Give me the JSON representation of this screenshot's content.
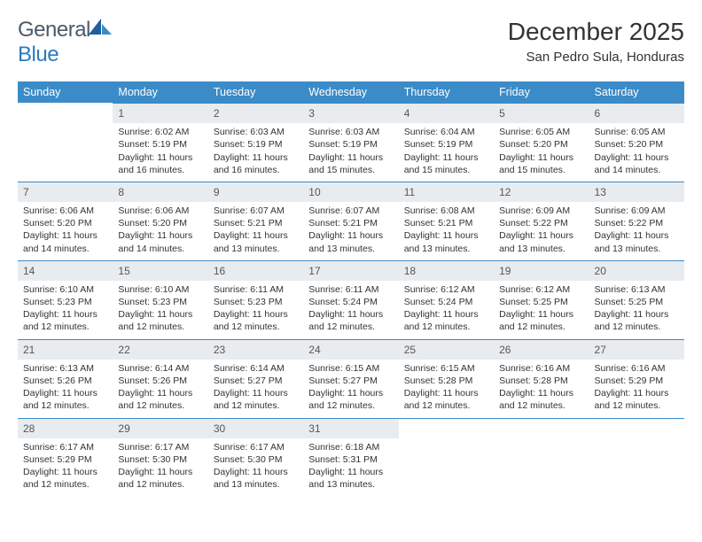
{
  "logo": {
    "text_general": "General",
    "text_blue": "Blue"
  },
  "title": "December 2025",
  "location": "San Pedro Sula, Honduras",
  "header_bg": "#3b8bc8",
  "daynum_bg": "#e9ecef",
  "rule_color": "#3b8bc8",
  "weekdays": [
    "Sunday",
    "Monday",
    "Tuesday",
    "Wednesday",
    "Thursday",
    "Friday",
    "Saturday"
  ],
  "first_weekday_offset": 1,
  "days": [
    {
      "n": 1,
      "sunrise": "6:02 AM",
      "sunset": "5:19 PM",
      "daylight": "11 hours and 16 minutes."
    },
    {
      "n": 2,
      "sunrise": "6:03 AM",
      "sunset": "5:19 PM",
      "daylight": "11 hours and 16 minutes."
    },
    {
      "n": 3,
      "sunrise": "6:03 AM",
      "sunset": "5:19 PM",
      "daylight": "11 hours and 15 minutes."
    },
    {
      "n": 4,
      "sunrise": "6:04 AM",
      "sunset": "5:19 PM",
      "daylight": "11 hours and 15 minutes."
    },
    {
      "n": 5,
      "sunrise": "6:05 AM",
      "sunset": "5:20 PM",
      "daylight": "11 hours and 15 minutes."
    },
    {
      "n": 6,
      "sunrise": "6:05 AM",
      "sunset": "5:20 PM",
      "daylight": "11 hours and 14 minutes."
    },
    {
      "n": 7,
      "sunrise": "6:06 AM",
      "sunset": "5:20 PM",
      "daylight": "11 hours and 14 minutes."
    },
    {
      "n": 8,
      "sunrise": "6:06 AM",
      "sunset": "5:20 PM",
      "daylight": "11 hours and 14 minutes."
    },
    {
      "n": 9,
      "sunrise": "6:07 AM",
      "sunset": "5:21 PM",
      "daylight": "11 hours and 13 minutes."
    },
    {
      "n": 10,
      "sunrise": "6:07 AM",
      "sunset": "5:21 PM",
      "daylight": "11 hours and 13 minutes."
    },
    {
      "n": 11,
      "sunrise": "6:08 AM",
      "sunset": "5:21 PM",
      "daylight": "11 hours and 13 minutes."
    },
    {
      "n": 12,
      "sunrise": "6:09 AM",
      "sunset": "5:22 PM",
      "daylight": "11 hours and 13 minutes."
    },
    {
      "n": 13,
      "sunrise": "6:09 AM",
      "sunset": "5:22 PM",
      "daylight": "11 hours and 13 minutes."
    },
    {
      "n": 14,
      "sunrise": "6:10 AM",
      "sunset": "5:23 PM",
      "daylight": "11 hours and 12 minutes."
    },
    {
      "n": 15,
      "sunrise": "6:10 AM",
      "sunset": "5:23 PM",
      "daylight": "11 hours and 12 minutes."
    },
    {
      "n": 16,
      "sunrise": "6:11 AM",
      "sunset": "5:23 PM",
      "daylight": "11 hours and 12 minutes."
    },
    {
      "n": 17,
      "sunrise": "6:11 AM",
      "sunset": "5:24 PM",
      "daylight": "11 hours and 12 minutes."
    },
    {
      "n": 18,
      "sunrise": "6:12 AM",
      "sunset": "5:24 PM",
      "daylight": "11 hours and 12 minutes."
    },
    {
      "n": 19,
      "sunrise": "6:12 AM",
      "sunset": "5:25 PM",
      "daylight": "11 hours and 12 minutes."
    },
    {
      "n": 20,
      "sunrise": "6:13 AM",
      "sunset": "5:25 PM",
      "daylight": "11 hours and 12 minutes."
    },
    {
      "n": 21,
      "sunrise": "6:13 AM",
      "sunset": "5:26 PM",
      "daylight": "11 hours and 12 minutes."
    },
    {
      "n": 22,
      "sunrise": "6:14 AM",
      "sunset": "5:26 PM",
      "daylight": "11 hours and 12 minutes."
    },
    {
      "n": 23,
      "sunrise": "6:14 AM",
      "sunset": "5:27 PM",
      "daylight": "11 hours and 12 minutes."
    },
    {
      "n": 24,
      "sunrise": "6:15 AM",
      "sunset": "5:27 PM",
      "daylight": "11 hours and 12 minutes."
    },
    {
      "n": 25,
      "sunrise": "6:15 AM",
      "sunset": "5:28 PM",
      "daylight": "11 hours and 12 minutes."
    },
    {
      "n": 26,
      "sunrise": "6:16 AM",
      "sunset": "5:28 PM",
      "daylight": "11 hours and 12 minutes."
    },
    {
      "n": 27,
      "sunrise": "6:16 AM",
      "sunset": "5:29 PM",
      "daylight": "11 hours and 12 minutes."
    },
    {
      "n": 28,
      "sunrise": "6:17 AM",
      "sunset": "5:29 PM",
      "daylight": "11 hours and 12 minutes."
    },
    {
      "n": 29,
      "sunrise": "6:17 AM",
      "sunset": "5:30 PM",
      "daylight": "11 hours and 12 minutes."
    },
    {
      "n": 30,
      "sunrise": "6:17 AM",
      "sunset": "5:30 PM",
      "daylight": "11 hours and 13 minutes."
    },
    {
      "n": 31,
      "sunrise": "6:18 AM",
      "sunset": "5:31 PM",
      "daylight": "11 hours and 13 minutes."
    }
  ],
  "labels": {
    "sunrise": "Sunrise:",
    "sunset": "Sunset:",
    "daylight": "Daylight:"
  }
}
